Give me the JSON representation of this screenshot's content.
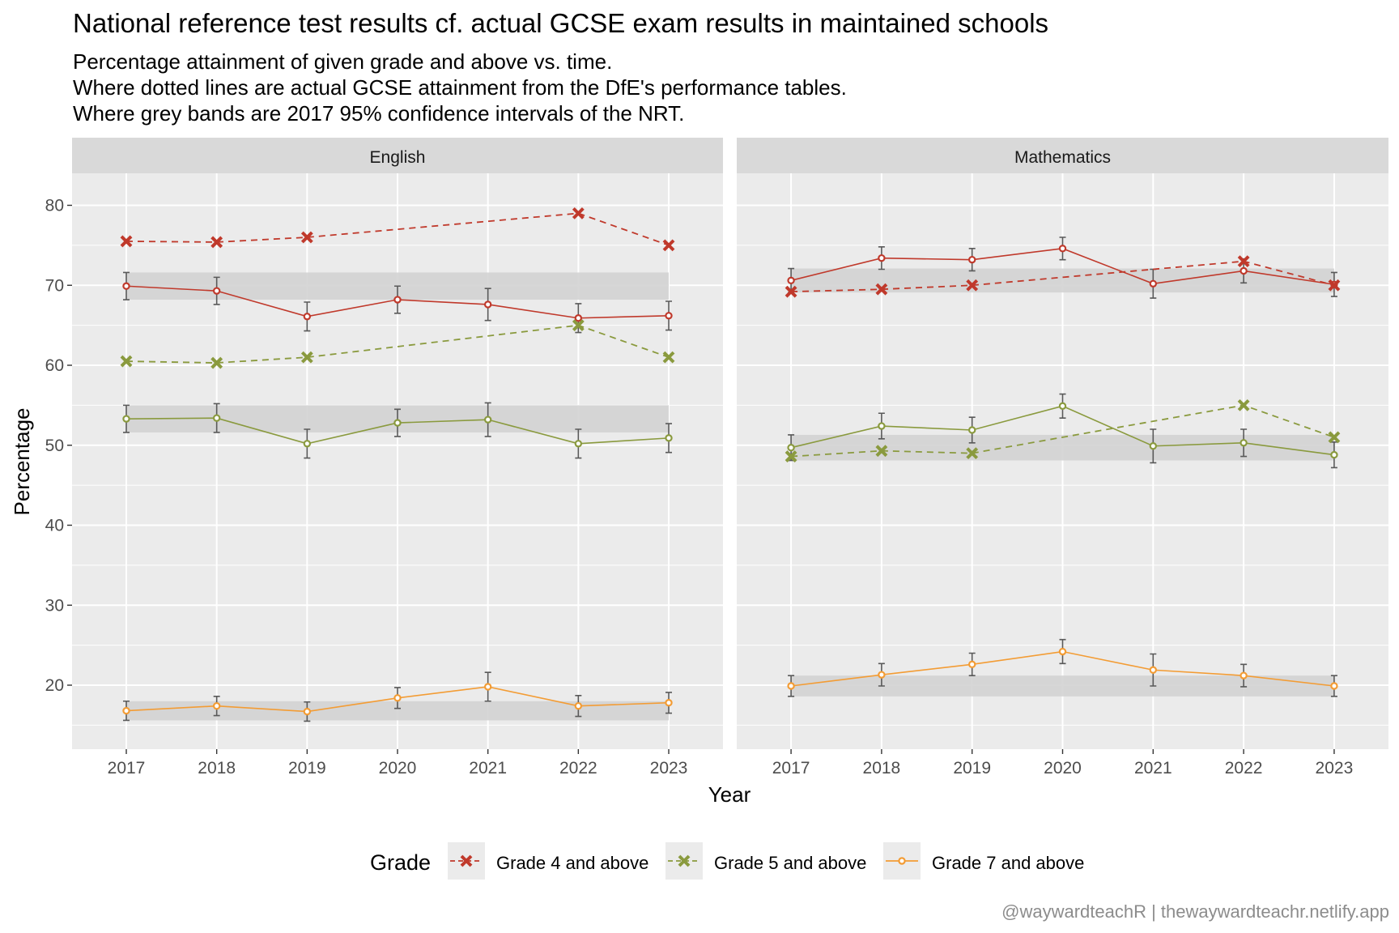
{
  "title": "National reference test results cf. actual GCSE exam results in maintained schools",
  "subtitle_lines": [
    "Percentage attainment of given grade and above vs. time.",
    "Where dotted lines are actual GCSE attainment from the DfE's performance tables.",
    "Where grey bands are 2017 95% confidence intervals of the NRT."
  ],
  "caption": "@waywardteachR | thewaywardteachr.netlify.app",
  "colors": {
    "grade4": "#c0392b",
    "grade5": "#8a9a3e",
    "grade7": "#f39c34",
    "panel_bg": "#ebebeb",
    "strip_bg": "#d9d9d9",
    "band": "#d3d3d3",
    "errorbar": "#595959"
  },
  "chart_data": {
    "type": "line",
    "xlabel": "Year",
    "ylabel": "Percentage",
    "x": [
      2017,
      2018,
      2019,
      2020,
      2021,
      2022,
      2023
    ],
    "ylim": [
      12,
      84
    ],
    "y_ticks": [
      20,
      30,
      40,
      50,
      60,
      70,
      80
    ],
    "grid": true,
    "legend": {
      "title": "Grade",
      "position": "bottom",
      "entries": [
        "Grade 4 and above",
        "Grade 5 and above",
        "Grade 7 and above"
      ]
    },
    "panels": [
      {
        "name": "English",
        "nrt": [
          {
            "grade": "Grade 4 and above",
            "values": [
              69.9,
              69.3,
              66.1,
              68.2,
              67.6,
              65.9,
              66.2
            ],
            "err": [
              1.7,
              1.7,
              1.8,
              1.7,
              2.0,
              1.8,
              1.8
            ]
          },
          {
            "grade": "Grade 5 and above",
            "values": [
              53.3,
              53.4,
              50.2,
              52.8,
              53.2,
              50.2,
              50.9
            ],
            "err": [
              1.7,
              1.8,
              1.8,
              1.7,
              2.1,
              1.8,
              1.8
            ]
          },
          {
            "grade": "Grade 7 and above",
            "values": [
              16.8,
              17.4,
              16.7,
              18.4,
              19.8,
              17.4,
              17.8
            ],
            "err": [
              1.2,
              1.2,
              1.2,
              1.3,
              1.8,
              1.3,
              1.3
            ]
          }
        ],
        "gcse": [
          {
            "grade": "Grade 4 and above",
            "x": [
              2017,
              2018,
              2019,
              2022,
              2023
            ],
            "values": [
              75.5,
              75.4,
              76.0,
              79.0,
              75.0
            ]
          },
          {
            "grade": "Grade 5 and above",
            "x": [
              2017,
              2018,
              2019,
              2022,
              2023
            ],
            "values": [
              60.5,
              60.3,
              61.0,
              65.0,
              61.0
            ]
          }
        ],
        "bands": [
          {
            "grade": "Grade 4 and above",
            "low": 68.2,
            "high": 71.6
          },
          {
            "grade": "Grade 5 and above",
            "low": 51.6,
            "high": 55.0
          },
          {
            "grade": "Grade 7 and above",
            "low": 15.6,
            "high": 18.0
          }
        ]
      },
      {
        "name": "Mathematics",
        "nrt": [
          {
            "grade": "Grade 4 and above",
            "values": [
              70.6,
              73.4,
              73.2,
              74.6,
              70.2,
              71.8,
              70.1
            ],
            "err": [
              1.5,
              1.4,
              1.4,
              1.4,
              1.8,
              1.5,
              1.5
            ]
          },
          {
            "grade": "Grade 5 and above",
            "values": [
              49.7,
              52.4,
              51.9,
              54.9,
              49.9,
              50.3,
              48.8
            ],
            "err": [
              1.6,
              1.6,
              1.6,
              1.5,
              2.1,
              1.7,
              1.6
            ]
          },
          {
            "grade": "Grade 7 and above",
            "values": [
              19.9,
              21.3,
              22.6,
              24.2,
              21.9,
              21.2,
              19.9
            ],
            "err": [
              1.3,
              1.4,
              1.4,
              1.5,
              2.0,
              1.4,
              1.3
            ]
          }
        ],
        "gcse": [
          {
            "grade": "Grade 4 and above",
            "x": [
              2017,
              2018,
              2019,
              2022,
              2023
            ],
            "values": [
              69.2,
              69.5,
              70.0,
              73.0,
              70.0
            ]
          },
          {
            "grade": "Grade 5 and above",
            "x": [
              2017,
              2018,
              2019,
              2022,
              2023
            ],
            "values": [
              48.6,
              49.3,
              49.0,
              55.0,
              51.0
            ]
          }
        ],
        "bands": [
          {
            "grade": "Grade 4 and above",
            "low": 69.1,
            "high": 72.1
          },
          {
            "grade": "Grade 5 and above",
            "low": 48.1,
            "high": 51.3
          },
          {
            "grade": "Grade 7 and above",
            "low": 18.6,
            "high": 21.2
          }
        ]
      }
    ]
  }
}
